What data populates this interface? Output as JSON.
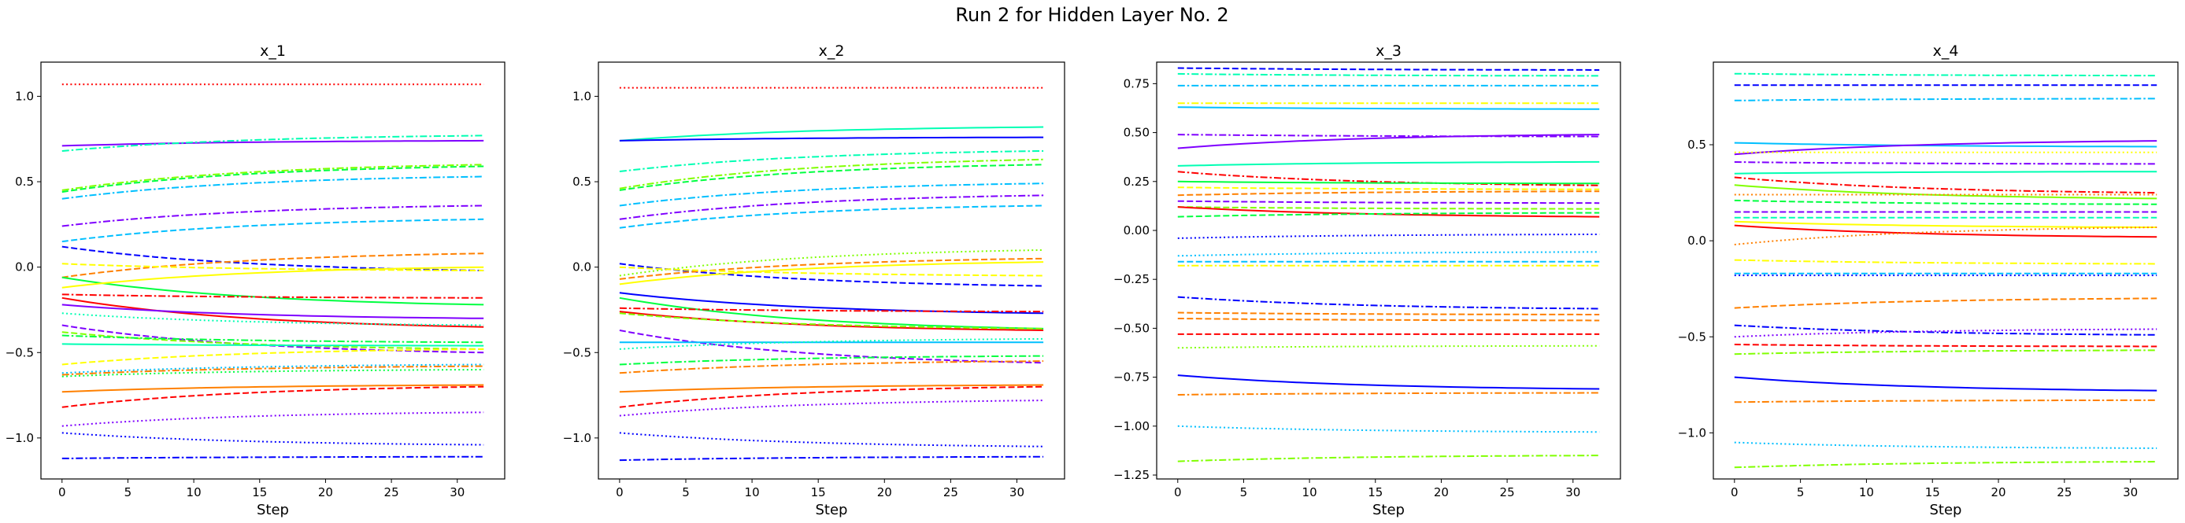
{
  "figure": {
    "suptitle": "Run 2 for Hidden Layer No. 2"
  },
  "chart_data": [
    {
      "type": "line",
      "title": "x_1",
      "xlabel": "Step",
      "ylabel": "",
      "x_range": [
        0,
        32
      ],
      "xlim": [
        -1.6,
        33.6
      ],
      "ylim": [
        -1.24,
        1.2
      ],
      "xticks": [
        0,
        5,
        10,
        15,
        20,
        25,
        30
      ],
      "yticks": [
        -1.0,
        -0.5,
        0.0,
        0.5,
        1.0
      ],
      "ytick_labels": [
        "−1.0",
        "−0.5",
        "0.0",
        "0.5",
        "1.0"
      ],
      "grid": false,
      "series": [
        {
          "color": "#ff0000",
          "dash": "dotted",
          "start": 1.07,
          "end": 1.07
        },
        {
          "color": "#7f00ff",
          "dash": "solid",
          "start": 0.71,
          "end": 0.74
        },
        {
          "color": "#00ffb3",
          "dash": "dashdot",
          "start": 0.68,
          "end": 0.77
        },
        {
          "color": "#80ff00",
          "dash": "dashdot",
          "start": 0.45,
          "end": 0.6
        },
        {
          "color": "#00ff40",
          "dash": "dashed",
          "start": 0.44,
          "end": 0.59
        },
        {
          "color": "#00bfff",
          "dash": "dashdot",
          "start": 0.4,
          "end": 0.53
        },
        {
          "color": "#7f00ff",
          "dash": "dashdot",
          "start": 0.24,
          "end": 0.36
        },
        {
          "color": "#00bfff",
          "dash": "dashed",
          "start": 0.15,
          "end": 0.28
        },
        {
          "color": "#0000ff",
          "dash": "dashed",
          "start": 0.12,
          "end": -0.02
        },
        {
          "color": "#ff8000",
          "dash": "dashed",
          "start": -0.06,
          "end": 0.08
        },
        {
          "color": "#ffff00",
          "dash": "dashed",
          "start": 0.02,
          "end": -0.02
        },
        {
          "color": "#00ff40",
          "dash": "solid",
          "start": -0.06,
          "end": -0.22
        },
        {
          "color": "#ffff00",
          "dash": "solid",
          "start": -0.12,
          "end": 0.0
        },
        {
          "color": "#ff0000",
          "dash": "dashdot",
          "start": -0.16,
          "end": -0.18
        },
        {
          "color": "#ff0000",
          "dash": "solid",
          "start": -0.18,
          "end": -0.35
        },
        {
          "color": "#7f00ff",
          "dash": "solid",
          "start": -0.22,
          "end": -0.3
        },
        {
          "color": "#00ffb3",
          "dash": "dotted",
          "start": -0.27,
          "end": -0.34
        },
        {
          "color": "#7f00ff",
          "dash": "dashed",
          "start": -0.34,
          "end": -0.5
        },
        {
          "color": "#80ff00",
          "dash": "dashed",
          "start": -0.38,
          "end": -0.48
        },
        {
          "color": "#00ff40",
          "dash": "dashdot",
          "start": -0.4,
          "end": -0.44
        },
        {
          "color": "#00ffb3",
          "dash": "solid",
          "start": -0.45,
          "end": -0.46
        },
        {
          "color": "#ffff00",
          "dash": "dashed",
          "start": -0.57,
          "end": -0.48
        },
        {
          "color": "#00bfff",
          "dash": "dotted",
          "start": -0.62,
          "end": -0.57
        },
        {
          "color": "#ff8000",
          "dash": "dashdot",
          "start": -0.63,
          "end": -0.58
        },
        {
          "color": "#00ff40",
          "dash": "dotted",
          "start": -0.64,
          "end": -0.6
        },
        {
          "color": "#ff8000",
          "dash": "solid",
          "start": -0.73,
          "end": -0.69
        },
        {
          "color": "#ff0000",
          "dash": "dashed",
          "start": -0.82,
          "end": -0.7
        },
        {
          "color": "#7f00ff",
          "dash": "dotted",
          "start": -0.93,
          "end": -0.85
        },
        {
          "color": "#0000ff",
          "dash": "dotted",
          "start": -0.97,
          "end": -1.04
        },
        {
          "color": "#0000ff",
          "dash": "dashdot",
          "start": -1.12,
          "end": -1.11
        }
      ]
    },
    {
      "type": "line",
      "title": "x_2",
      "xlabel": "Step",
      "ylabel": "",
      "x_range": [
        0,
        32
      ],
      "xlim": [
        -1.6,
        33.6
      ],
      "ylim": [
        -1.24,
        1.2
      ],
      "xticks": [
        0,
        5,
        10,
        15,
        20,
        25,
        30
      ],
      "yticks": [
        -1.0,
        -0.5,
        0.0,
        0.5,
        1.0
      ],
      "ytick_labels": [
        "−1.0",
        "−0.5",
        "0.0",
        "0.5",
        "1.0"
      ],
      "grid": false,
      "series": [
        {
          "color": "#ff0000",
          "dash": "dotted",
          "start": 1.05,
          "end": 1.05
        },
        {
          "color": "#00ffb3",
          "dash": "solid",
          "start": 0.74,
          "end": 0.82
        },
        {
          "color": "#0000ff",
          "dash": "solid",
          "start": 0.74,
          "end": 0.76
        },
        {
          "color": "#00ffb3",
          "dash": "dashdot",
          "start": 0.56,
          "end": 0.68
        },
        {
          "color": "#80ff00",
          "dash": "dashdot",
          "start": 0.46,
          "end": 0.63
        },
        {
          "color": "#00ff40",
          "dash": "dashed",
          "start": 0.45,
          "end": 0.6
        },
        {
          "color": "#00bfff",
          "dash": "dashdot",
          "start": 0.36,
          "end": 0.49
        },
        {
          "color": "#7f00ff",
          "dash": "dashdot",
          "start": 0.28,
          "end": 0.42
        },
        {
          "color": "#00bfff",
          "dash": "dashed",
          "start": 0.23,
          "end": 0.36
        },
        {
          "color": "#80ff00",
          "dash": "dotted",
          "start": -0.05,
          "end": 0.1
        },
        {
          "color": "#0000ff",
          "dash": "dashed",
          "start": 0.02,
          "end": -0.11
        },
        {
          "color": "#ff8000",
          "dash": "dashed",
          "start": -0.07,
          "end": 0.05
        },
        {
          "color": "#ffff00",
          "dash": "solid",
          "start": -0.1,
          "end": 0.03
        },
        {
          "color": "#ffff00",
          "dash": "dashed",
          "start": 0.0,
          "end": -0.05
        },
        {
          "color": "#0000ff",
          "dash": "solid",
          "start": -0.15,
          "end": -0.27
        },
        {
          "color": "#00ff40",
          "dash": "solid",
          "start": -0.18,
          "end": -0.36
        },
        {
          "color": "#ff0000",
          "dash": "dashdot",
          "start": -0.24,
          "end": -0.26
        },
        {
          "color": "#ff0000",
          "dash": "solid",
          "start": -0.26,
          "end": -0.37
        },
        {
          "color": "#80ff00",
          "dash": "dashed",
          "start": -0.27,
          "end": -0.36
        },
        {
          "color": "#7f00ff",
          "dash": "dashed",
          "start": -0.37,
          "end": -0.56
        },
        {
          "color": "#00bfff",
          "dash": "solid",
          "start": -0.44,
          "end": -0.44
        },
        {
          "color": "#00ffb3",
          "dash": "dotted",
          "start": -0.48,
          "end": -0.42
        },
        {
          "color": "#00ff40",
          "dash": "dashdot",
          "start": -0.57,
          "end": -0.52
        },
        {
          "color": "#ff8000",
          "dash": "dashdot",
          "start": -0.62,
          "end": -0.55
        },
        {
          "color": "#ff8000",
          "dash": "solid",
          "start": -0.73,
          "end": -0.69
        },
        {
          "color": "#ff0000",
          "dash": "dashed",
          "start": -0.82,
          "end": -0.7
        },
        {
          "color": "#7f00ff",
          "dash": "dotted",
          "start": -0.87,
          "end": -0.78
        },
        {
          "color": "#0000ff",
          "dash": "dotted",
          "start": -0.97,
          "end": -1.05
        },
        {
          "color": "#0000ff",
          "dash": "dashdot",
          "start": -1.13,
          "end": -1.11
        }
      ]
    },
    {
      "type": "line",
      "title": "x_3",
      "xlabel": "Step",
      "ylabel": "",
      "x_range": [
        0,
        32
      ],
      "xlim": [
        -1.6,
        33.6
      ],
      "ylim": [
        -1.27,
        0.86
      ],
      "xticks": [
        0,
        5,
        10,
        15,
        20,
        25,
        30
      ],
      "yticks": [
        -1.25,
        -1.0,
        -0.75,
        -0.5,
        -0.25,
        0.0,
        0.25,
        0.5,
        0.75
      ],
      "ytick_labels": [
        "−1.25",
        "−1.00",
        "−0.75",
        "−0.50",
        "−0.25",
        "0.00",
        "0.25",
        "0.50",
        "0.75"
      ],
      "grid": false,
      "series": [
        {
          "color": "#0000ff",
          "dash": "dashed",
          "start": 0.83,
          "end": 0.82
        },
        {
          "color": "#00ffb3",
          "dash": "dashdot",
          "start": 0.8,
          "end": 0.79
        },
        {
          "color": "#00bfff",
          "dash": "dashdot",
          "start": 0.74,
          "end": 0.74
        },
        {
          "color": "#ffff00",
          "dash": "dashdot",
          "start": 0.65,
          "end": 0.65
        },
        {
          "color": "#00bfff",
          "dash": "solid",
          "start": 0.63,
          "end": 0.62
        },
        {
          "color": "#7f00ff",
          "dash": "dashdot",
          "start": 0.49,
          "end": 0.48
        },
        {
          "color": "#7f00ff",
          "dash": "solid",
          "start": 0.42,
          "end": 0.49
        },
        {
          "color": "#00ffb3",
          "dash": "solid",
          "start": 0.33,
          "end": 0.35
        },
        {
          "color": "#ff0000",
          "dash": "dashdot",
          "start": 0.3,
          "end": 0.23
        },
        {
          "color": "#00ff40",
          "dash": "solid",
          "start": 0.25,
          "end": 0.24
        },
        {
          "color": "#ffff00",
          "dash": "dashed",
          "start": 0.22,
          "end": 0.21
        },
        {
          "color": "#ff8000",
          "dash": "dashed",
          "start": 0.18,
          "end": 0.2
        },
        {
          "color": "#7f00ff",
          "dash": "dashed",
          "start": 0.15,
          "end": 0.14
        },
        {
          "color": "#80ff00",
          "dash": "dashed",
          "start": 0.12,
          "end": 0.11
        },
        {
          "color": "#ff0000",
          "dash": "solid",
          "start": 0.12,
          "end": 0.07
        },
        {
          "color": "#00ff40",
          "dash": "dashed",
          "start": 0.07,
          "end": 0.09
        },
        {
          "color": "#0000ff",
          "dash": "dotted",
          "start": -0.04,
          "end": -0.02
        },
        {
          "color": "#00bfff",
          "dash": "dotted",
          "start": -0.13,
          "end": -0.11
        },
        {
          "color": "#00bfff",
          "dash": "dashed",
          "start": -0.16,
          "end": -0.16
        },
        {
          "color": "#ffff00",
          "dash": "dashdot",
          "start": -0.18,
          "end": -0.18
        },
        {
          "color": "#0000ff",
          "dash": "dashdot",
          "start": -0.34,
          "end": -0.4
        },
        {
          "color": "#ff8000",
          "dash": "dashed",
          "start": -0.42,
          "end": -0.43
        },
        {
          "color": "#ff8000",
          "dash": "dashed",
          "start": -0.45,
          "end": -0.46
        },
        {
          "color": "#ff0000",
          "dash": "dashed",
          "start": -0.53,
          "end": -0.53
        },
        {
          "color": "#80ff00",
          "dash": "dotted",
          "start": -0.6,
          "end": -0.59
        },
        {
          "color": "#0000ff",
          "dash": "solid",
          "start": -0.74,
          "end": -0.81
        },
        {
          "color": "#ff8000",
          "dash": "dashdot",
          "start": -0.84,
          "end": -0.83
        },
        {
          "color": "#00bfff",
          "dash": "dotted",
          "start": -1.0,
          "end": -1.03
        },
        {
          "color": "#80ff00",
          "dash": "dashdot",
          "start": -1.18,
          "end": -1.15
        }
      ]
    },
    {
      "type": "line",
      "title": "x_4",
      "xlabel": "Step",
      "ylabel": "",
      "x_range": [
        0,
        32
      ],
      "xlim": [
        -1.6,
        33.6
      ],
      "ylim": [
        -1.24,
        0.93
      ],
      "xticks": [
        0,
        5,
        10,
        15,
        20,
        25,
        30
      ],
      "yticks": [
        -1.0,
        -0.5,
        0.0,
        0.5
      ],
      "ytick_labels": [
        "−1.0",
        "−0.5",
        "0.0",
        "0.5"
      ],
      "grid": false,
      "series": [
        {
          "color": "#00ffb3",
          "dash": "dashdot",
          "start": 0.87,
          "end": 0.86
        },
        {
          "color": "#0000ff",
          "dash": "dashed",
          "start": 0.81,
          "end": 0.81
        },
        {
          "color": "#00bfff",
          "dash": "dashdot",
          "start": 0.73,
          "end": 0.74
        },
        {
          "color": "#00bfff",
          "dash": "solid",
          "start": 0.51,
          "end": 0.49
        },
        {
          "color": "#7f00ff",
          "dash": "solid",
          "start": 0.45,
          "end": 0.52
        },
        {
          "color": "#ffff00",
          "dash": "dotted",
          "start": 0.46,
          "end": 0.46
        },
        {
          "color": "#7f00ff",
          "dash": "dashdot",
          "start": 0.41,
          "end": 0.4
        },
        {
          "color": "#00ffb3",
          "dash": "solid",
          "start": 0.35,
          "end": 0.36
        },
        {
          "color": "#ff0000",
          "dash": "dashdot",
          "start": 0.33,
          "end": 0.25
        },
        {
          "color": "#80ff00",
          "dash": "solid",
          "start": 0.29,
          "end": 0.22
        },
        {
          "color": "#ff8000",
          "dash": "dotted",
          "start": 0.24,
          "end": 0.24
        },
        {
          "color": "#00ff40",
          "dash": "dashed",
          "start": 0.21,
          "end": 0.19
        },
        {
          "color": "#7f00ff",
          "dash": "dashed",
          "start": 0.15,
          "end": 0.15
        },
        {
          "color": "#00ffb3",
          "dash": "dashed",
          "start": 0.12,
          "end": 0.12
        },
        {
          "color": "#ffff00",
          "dash": "solid",
          "start": 0.1,
          "end": 0.07
        },
        {
          "color": "#ff0000",
          "dash": "solid",
          "start": 0.08,
          "end": 0.02
        },
        {
          "color": "#ff8000",
          "dash": "dotted",
          "start": -0.02,
          "end": 0.07
        },
        {
          "color": "#ffff00",
          "dash": "dashdot",
          "start": -0.1,
          "end": -0.12
        },
        {
          "color": "#00bfff",
          "dash": "dashed",
          "start": -0.17,
          "end": -0.17
        },
        {
          "color": "#0000ff",
          "dash": "dotted",
          "start": -0.18,
          "end": -0.18
        },
        {
          "color": "#ff8000",
          "dash": "dashed",
          "start": -0.35,
          "end": -0.3
        },
        {
          "color": "#0000ff",
          "dash": "dashdot",
          "start": -0.44,
          "end": -0.49
        },
        {
          "color": "#7f00ff",
          "dash": "dotted",
          "start": -0.5,
          "end": -0.46
        },
        {
          "color": "#ff0000",
          "dash": "dashed",
          "start": -0.54,
          "end": -0.55
        },
        {
          "color": "#80ff00",
          "dash": "dashdot",
          "start": -0.59,
          "end": -0.57
        },
        {
          "color": "#0000ff",
          "dash": "solid",
          "start": -0.71,
          "end": -0.78
        },
        {
          "color": "#ff8000",
          "dash": "dashdot",
          "start": -0.84,
          "end": -0.83
        },
        {
          "color": "#00bfff",
          "dash": "dotted",
          "start": -1.05,
          "end": -1.08
        },
        {
          "color": "#80ff00",
          "dash": "dashdot",
          "start": -1.18,
          "end": -1.15
        }
      ]
    }
  ]
}
